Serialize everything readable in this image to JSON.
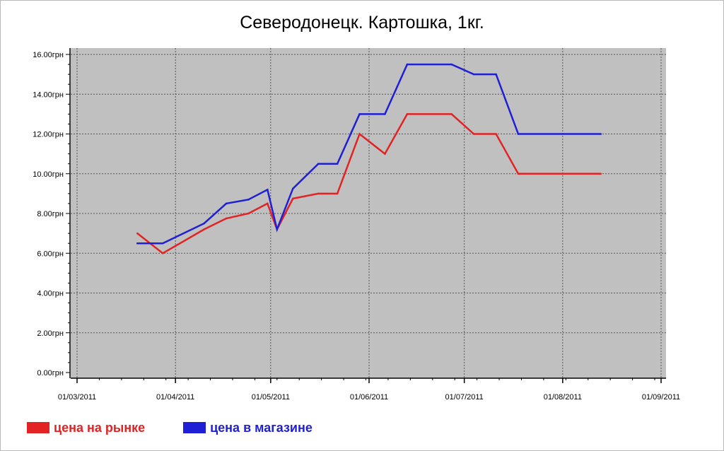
{
  "chart_data": {
    "type": "line",
    "title": "Северодонецк. Картошка, 1кг.",
    "xlabel": "",
    "ylabel": "",
    "ylim": [
      0,
      16
    ],
    "y_ticks": [
      "0.00грн",
      "2.00грн",
      "4.00грн",
      "6.00грн",
      "8.00грн",
      "10.00грн",
      "12.00грн",
      "14.00грн",
      "16.00грн"
    ],
    "x_ticks": [
      "01/03/2011",
      "01/04/2011",
      "01/05/2011",
      "01/06/2011",
      "01/07/2011",
      "01/08/2011",
      "01/09/2011"
    ],
    "x_tick_dates": [
      "2011-03-01",
      "2011-04-01",
      "2011-05-01",
      "2011-06-01",
      "2011-07-01",
      "2011-08-01",
      "2011-09-01"
    ],
    "xlim": [
      "2011-03-01",
      "2011-09-01"
    ],
    "grid": true,
    "background": "#c0c0c0",
    "legend_position": "bottom-left",
    "series": [
      {
        "name": "цена на рынке",
        "color": "#e32323",
        "points": [
          {
            "x": "2011-03-20",
            "y": 7.0
          },
          {
            "x": "2011-03-28",
            "y": 6.0
          },
          {
            "x": "2011-04-10",
            "y": 7.2
          },
          {
            "x": "2011-04-17",
            "y": 7.75
          },
          {
            "x": "2011-04-24",
            "y": 8.0
          },
          {
            "x": "2011-04-30",
            "y": 8.5
          },
          {
            "x": "2011-05-03",
            "y": 7.2
          },
          {
            "x": "2011-05-08",
            "y": 8.75
          },
          {
            "x": "2011-05-16",
            "y": 9.0
          },
          {
            "x": "2011-05-22",
            "y": 9.0
          },
          {
            "x": "2011-05-29",
            "y": 12.0
          },
          {
            "x": "2011-06-06",
            "y": 11.0
          },
          {
            "x": "2011-06-13",
            "y": 13.0
          },
          {
            "x": "2011-06-27",
            "y": 13.0
          },
          {
            "x": "2011-07-04",
            "y": 12.0
          },
          {
            "x": "2011-07-11",
            "y": 12.0
          },
          {
            "x": "2011-07-18",
            "y": 10.0
          },
          {
            "x": "2011-08-13",
            "y": 10.0
          }
        ]
      },
      {
        "name": "цена в магазине",
        "color": "#1f1fd6",
        "points": [
          {
            "x": "2011-03-20",
            "y": 6.5
          },
          {
            "x": "2011-03-28",
            "y": 6.5
          },
          {
            "x": "2011-04-10",
            "y": 7.5
          },
          {
            "x": "2011-04-17",
            "y": 8.5
          },
          {
            "x": "2011-04-24",
            "y": 8.7
          },
          {
            "x": "2011-04-30",
            "y": 9.2
          },
          {
            "x": "2011-05-03",
            "y": 7.2
          },
          {
            "x": "2011-05-08",
            "y": 9.25
          },
          {
            "x": "2011-05-16",
            "y": 10.5
          },
          {
            "x": "2011-05-22",
            "y": 10.5
          },
          {
            "x": "2011-05-29",
            "y": 13.0
          },
          {
            "x": "2011-06-06",
            "y": 13.0
          },
          {
            "x": "2011-06-13",
            "y": 15.5
          },
          {
            "x": "2011-06-27",
            "y": 15.5
          },
          {
            "x": "2011-07-04",
            "y": 15.0
          },
          {
            "x": "2011-07-11",
            "y": 15.0
          },
          {
            "x": "2011-07-18",
            "y": 12.0
          },
          {
            "x": "2011-08-13",
            "y": 12.0
          }
        ]
      }
    ]
  }
}
